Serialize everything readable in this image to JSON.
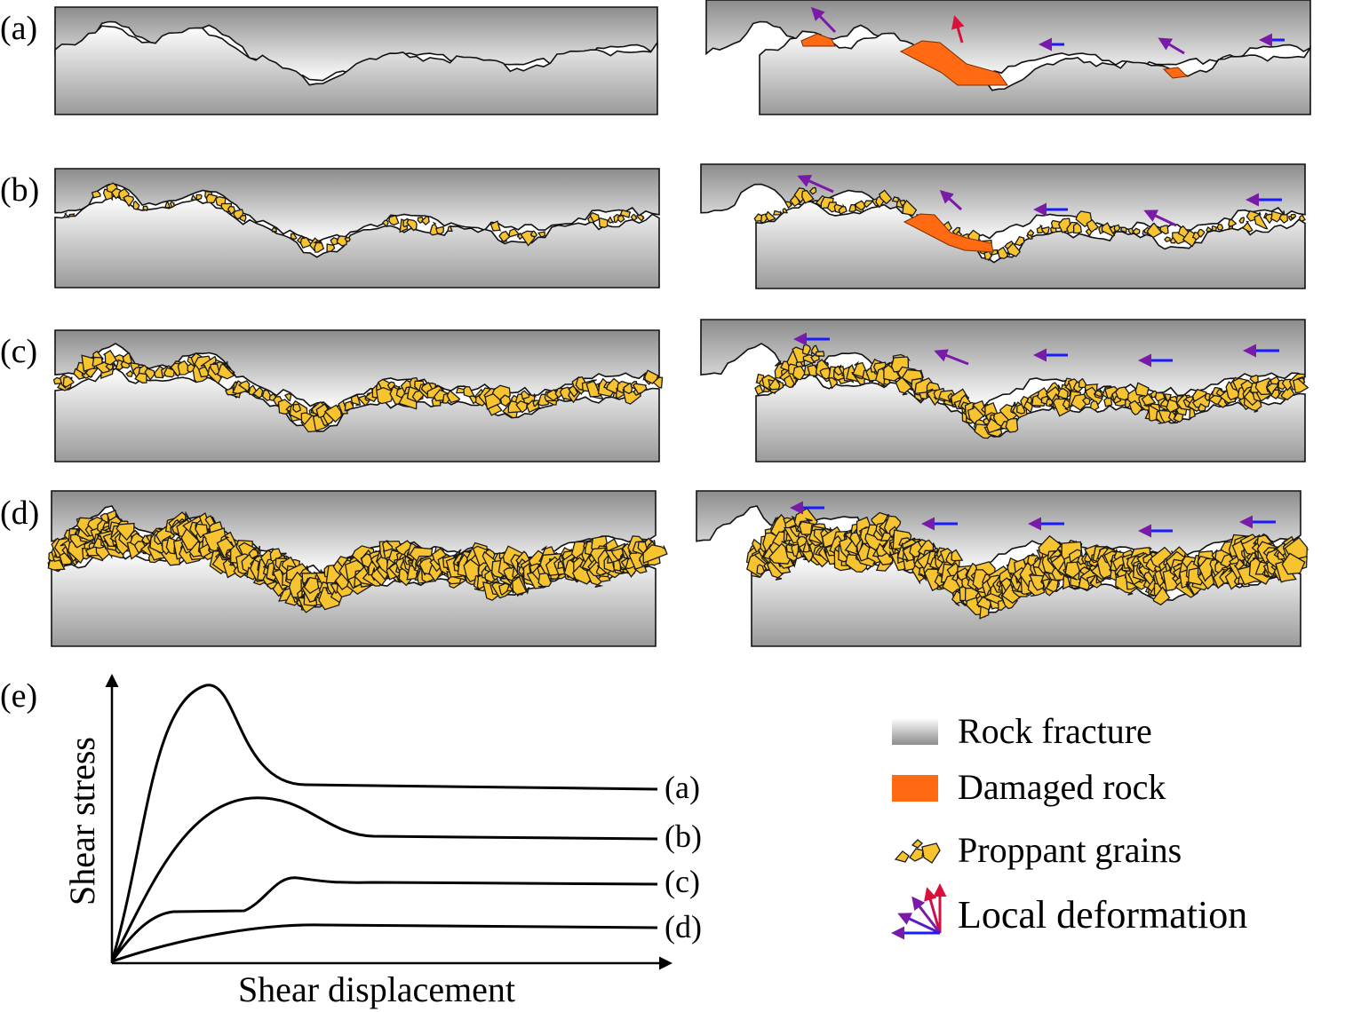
{
  "panels": [
    {
      "label": "(a)",
      "proppant": "none"
    },
    {
      "label": "(b)",
      "proppant": "partial monolayer"
    },
    {
      "label": "(c)",
      "proppant": "monolayer"
    },
    {
      "label": "(d)",
      "proppant": "multilayer"
    }
  ],
  "graph": {
    "label": "(e)",
    "ylabel": "Shear stress",
    "xlabel": "Shear displacement",
    "curves": [
      {
        "label": "(a)",
        "peak": "high sharp peak"
      },
      {
        "label": "(b)",
        "peak": "moderate peak"
      },
      {
        "label": "(c)",
        "peak": "two-stage, small peak"
      },
      {
        "label": "(d)",
        "peak": "no distinct peak"
      }
    ]
  },
  "legend": {
    "rock": "Rock fracture",
    "damaged": "Damaged rock",
    "proppant": "Proppant grains",
    "deformation": "Local deformation"
  },
  "colors": {
    "proppant": "#f7c32e",
    "damaged": "#ff6a13",
    "arrow_blue": "#1a1aff",
    "arrow_purple": "#7a1aa8",
    "arrow_red": "#d8103a"
  }
}
